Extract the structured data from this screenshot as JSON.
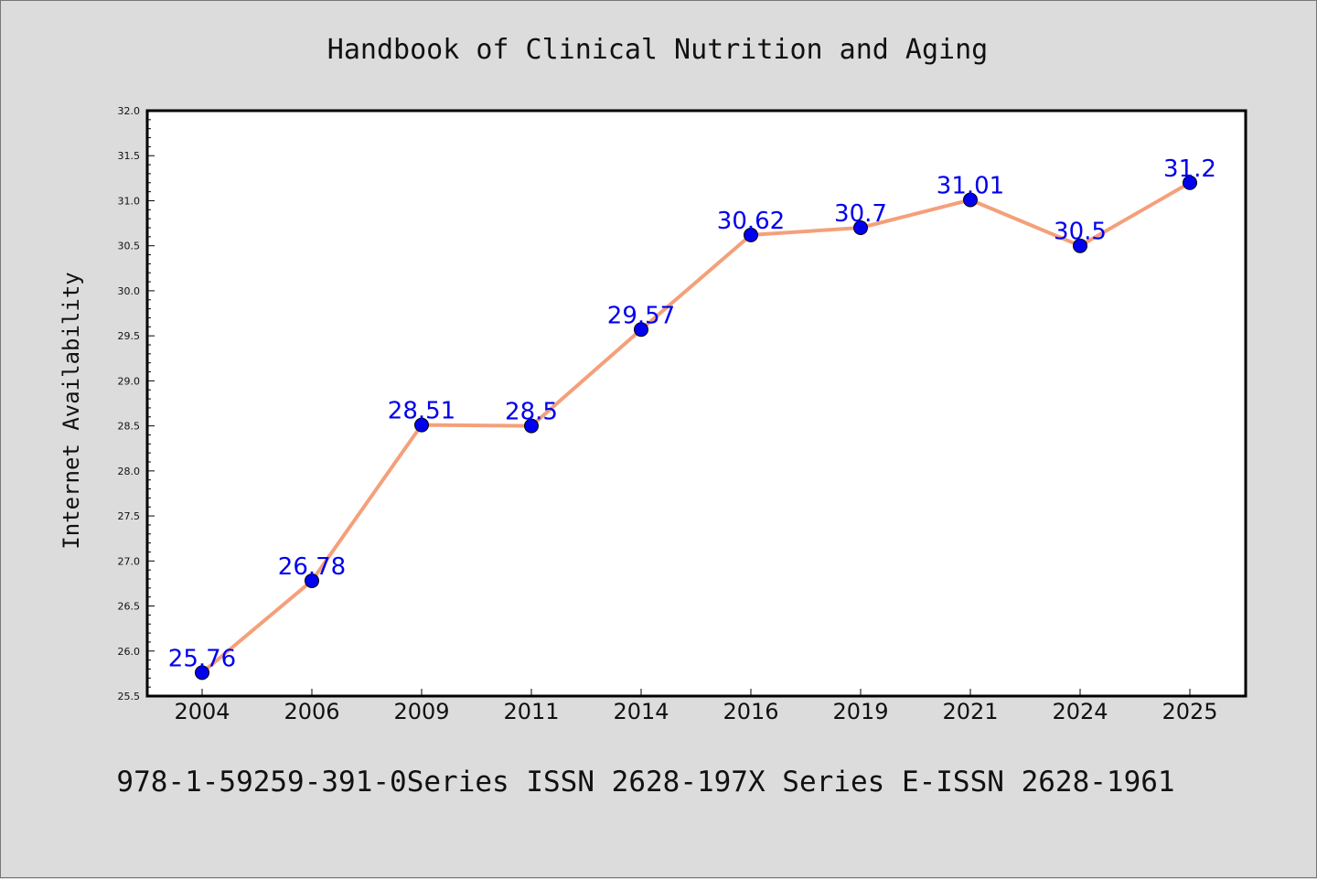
{
  "chart_data": {
    "type": "line",
    "title": "Handbook of Clinical Nutrition and Aging",
    "xlabel": "",
    "ylabel": "Internet Availability",
    "categories": [
      "2004",
      "2006",
      "2009",
      "2011",
      "2014",
      "2016",
      "2019",
      "2021",
      "2024",
      "2025"
    ],
    "series": [
      {
        "values": [
          25.76,
          26.78,
          28.51,
          28.5,
          29.57,
          30.62,
          30.7,
          31.01,
          30.5,
          31.2
        ],
        "line_color": "#f4a07a",
        "marker_color": "#0000ee"
      }
    ],
    "data_labels": [
      "25.76",
      "26.78",
      "28.51",
      "28.5",
      "29.57",
      "30.62",
      "30.7",
      "31.01",
      "30.5",
      "31.2"
    ],
    "ylim": [
      25.5,
      32.0
    ],
    "yticks": [
      "25.5",
      "26.0",
      "26.5",
      "27.0",
      "27.5",
      "28.0",
      "28.5",
      "29.0",
      "29.5",
      "30.0",
      "30.5",
      "31.0",
      "31.5",
      "32.0"
    ],
    "grid": false,
    "legend": "none"
  },
  "footer": {
    "text": "978-1-59259-391-0Series ISSN 2628-197X Series E-ISSN 2628-1961"
  },
  "colors": {
    "background": "#dcdcdc",
    "plot_background": "#ffffff",
    "line": "#f4a07a",
    "marker": "#0000ee",
    "label": "#0000ee"
  }
}
